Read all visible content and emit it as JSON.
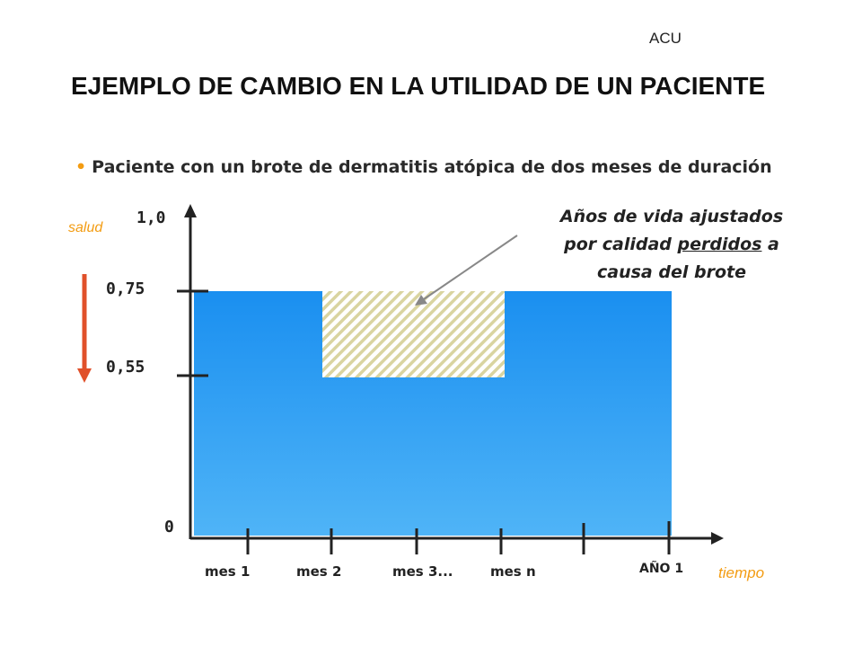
{
  "corner_label": "ACU",
  "title": "EJEMPLO DE CAMBIO EN LA UTILIDAD DE UN PACIENTE",
  "bullet": "Paciente con un brote de dermatitis atópica de dos meses de duración",
  "colors": {
    "accent_orange": "#f39c12",
    "arrow_red": "#e0502a",
    "area_blue_top": "#1a8ff0",
    "area_blue_bottom": "#4fb4f7",
    "hatch": "#d9d4a0"
  },
  "axis_words": {
    "y": "salud",
    "x": "tiempo"
  },
  "y_ticks": [
    "1,0",
    "0,75",
    "0,55",
    "0"
  ],
  "x_ticks": [
    "mes 1",
    "mes 2",
    "mes 3...",
    "mes n",
    "AÑO 1"
  ],
  "annotation": {
    "line1": "Años de vida ajustados",
    "line2_before": "por calidad ",
    "line2_underlined": "perdidos",
    "line2_after": " a",
    "line3": "causa del brote"
  },
  "chart_data": {
    "type": "area",
    "xlabel": "tiempo",
    "ylabel": "salud",
    "ylim": [
      0,
      1.0
    ],
    "baseline_utility": 0.75,
    "flare_utility": 0.55,
    "x_categories": [
      "mes 1",
      "mes 2",
      "mes 3...",
      "mes n",
      "AÑO 1"
    ],
    "flare_span": [
      "mes 2",
      "mes n"
    ],
    "lost_region": "Años de vida ajustados por calidad perdidos a causa del brote"
  }
}
